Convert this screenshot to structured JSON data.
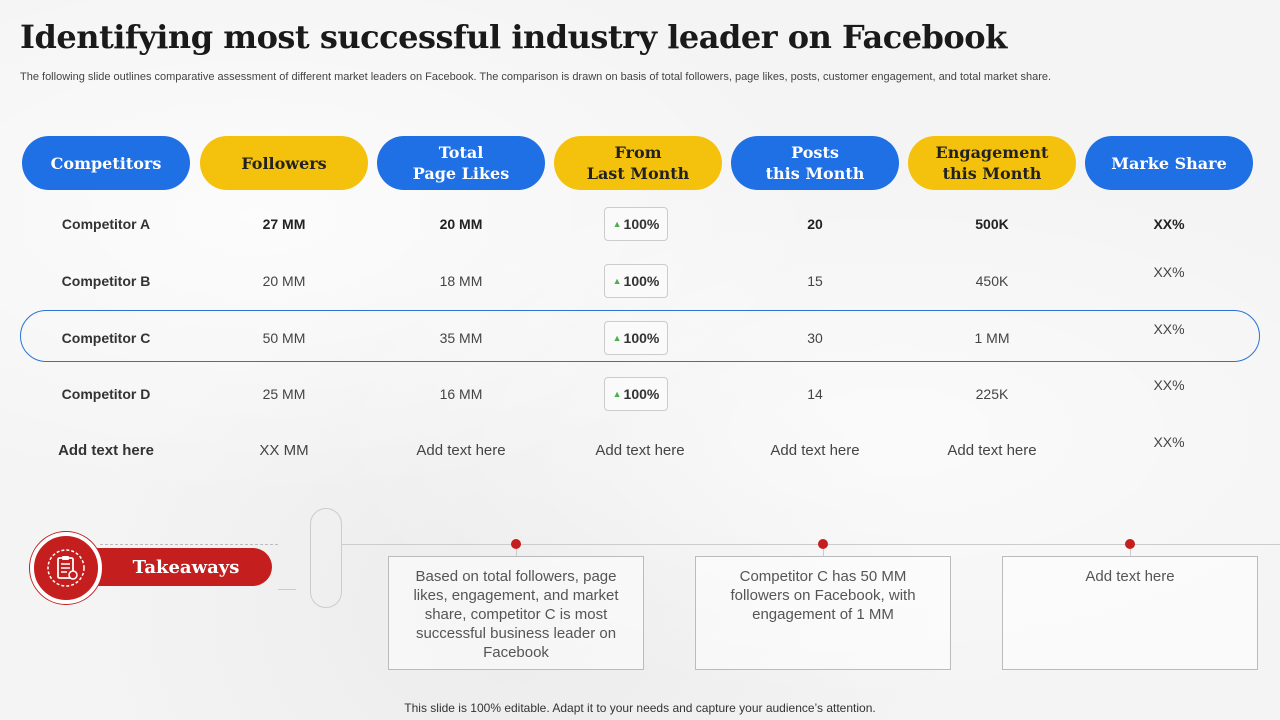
{
  "title": "Identifying most successful industry leader on Facebook",
  "subtitle": "The following slide outlines comparative assessment of different market leaders on Facebook. The comparison is drawn on basis of total followers, page likes, posts, customer engagement, and total market share.",
  "headers": [
    "Competitors",
    "Followers",
    "Total\nPage Likes",
    "From\nLast Month",
    "Posts\nthis Month",
    "Engagement\nthis Month",
    "Marke Share"
  ],
  "rows": [
    {
      "name": "Competitor A",
      "followers": "27 MM",
      "likes": "20 MM",
      "change": "100%",
      "posts": "20",
      "engagement": "500K",
      "share": "XX%"
    },
    {
      "name": "Competitor B",
      "followers": "20 MM",
      "likes": "18 MM",
      "change": "100%",
      "posts": "15",
      "engagement": "450K",
      "share": "XX%"
    },
    {
      "name": "Competitor C",
      "followers": "50 MM",
      "likes": "35 MM",
      "change": "100%",
      "posts": "30",
      "engagement": "1 MM",
      "share": "XX%"
    },
    {
      "name": "Competitor D",
      "followers": "25 MM",
      "likes": "16 MM",
      "change": "100%",
      "posts": "14",
      "engagement": "225K",
      "share": "XX%"
    },
    {
      "name": "Add  text here",
      "followers": "XX  MM",
      "likes": "Add text here",
      "change": "Add text here",
      "posts": "Add text here",
      "engagement": "Add text here",
      "share": "XX%"
    }
  ],
  "takeaways": {
    "label": "Takeaways",
    "items": [
      "Based on total followers, page likes, engagement, and market share, competitor C is most successful business leader on Facebook",
      "Competitor C has 50 MM followers on Facebook, with engagement of 1 MM",
      "Add text here"
    ]
  },
  "footer": "This slide is 100% editable. Adapt it to your needs and capture your audience’s attention.",
  "colors": {
    "blue": "#1f6fe5",
    "yellow": "#f4c20d",
    "red": "#c41e1e",
    "green": "#4caf50"
  }
}
